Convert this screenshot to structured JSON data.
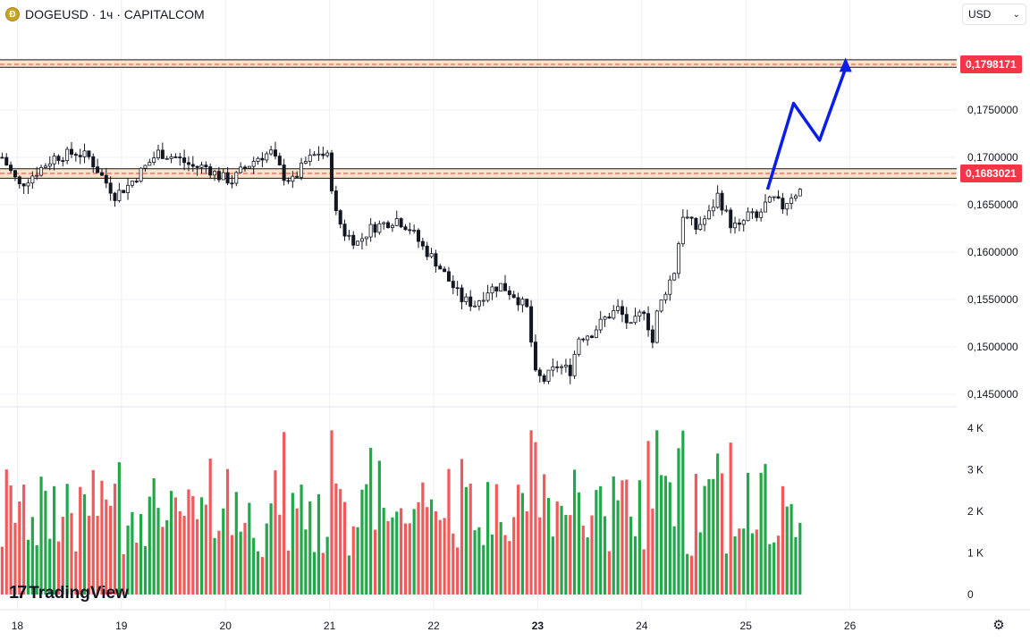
{
  "header": {
    "symbol": "DOGEUSD · 1ч · CAPITALCOM",
    "icon": "dogecoin-icon"
  },
  "currency_selector": {
    "value": "USD"
  },
  "branding": {
    "logo_text": "TradingView",
    "logo_mark": "17"
  },
  "price_tags": [
    {
      "label": "0,1798171",
      "value": 0.1798171,
      "color": "#f23645"
    },
    {
      "label": "0,1683021",
      "value": 0.1683021,
      "color": "#f23645"
    }
  ],
  "colors": {
    "up": "#089981",
    "down": "#131722",
    "vol_up": "#22a84a",
    "vol_down": "#f05a5a",
    "zone_border": "#131722",
    "zone_fill": "#fde3c8",
    "zone_dash": "#f23645",
    "arrow": "#0a1ee8",
    "grid": "#eef0f3"
  },
  "chart_data": {
    "type": "candlestick",
    "price_axis": {
      "ticks": [
        "0,1750000",
        "0,1700000",
        "0,1650000",
        "0,1600000",
        "0,1550000",
        "0,1500000",
        "0,1450000"
      ],
      "tick_values": [
        0.175,
        0.17,
        0.165,
        0.16,
        0.155,
        0.15,
        0.145
      ]
    },
    "volume_axis": {
      "ticks": [
        "4 K",
        "3 K",
        "2 K",
        "1 K",
        "0"
      ],
      "tick_values": [
        4000,
        3000,
        2000,
        1000,
        0
      ]
    },
    "x_axis": {
      "labels": [
        "18",
        "19",
        "20",
        "21",
        "22",
        "23",
        "24",
        "25",
        "26"
      ],
      "bold": "23"
    },
    "x_axis_hour_offsets": [
      4,
      28,
      52,
      76,
      100,
      124,
      148,
      172,
      196
    ],
    "zones": [
      {
        "top": 0.1803,
        "bottom": 0.1795,
        "mid": 0.1798171
      },
      {
        "top": 0.1688,
        "bottom": 0.1678,
        "mid": 0.1683021
      }
    ],
    "projection": [
      {
        "hour": 177,
        "price": 0.1666
      },
      {
        "hour": 183,
        "price": 0.1757
      },
      {
        "hour": 189,
        "price": 0.1718
      },
      {
        "hour": 195,
        "price": 0.1794
      }
    ],
    "close_path": [
      [
        0,
        0.17
      ],
      [
        4,
        0.167
      ],
      [
        8,
        0.1685
      ],
      [
        12,
        0.17
      ],
      [
        17,
        0.1705
      ],
      [
        20,
        0.17
      ],
      [
        23,
        0.168
      ],
      [
        26,
        0.166
      ],
      [
        29,
        0.167
      ],
      [
        33,
        0.169
      ],
      [
        36,
        0.1705
      ],
      [
        40,
        0.17
      ],
      [
        44,
        0.169
      ],
      [
        47,
        0.169
      ],
      [
        50,
        0.168
      ],
      [
        53,
        0.1675
      ],
      [
        55,
        0.1685
      ],
      [
        59,
        0.17
      ],
      [
        62,
        0.1705
      ],
      [
        65,
        0.168
      ],
      [
        67,
        0.1675
      ],
      [
        70,
        0.1695
      ],
      [
        73,
        0.1705
      ],
      [
        75,
        0.17
      ],
      [
        77,
        0.164
      ],
      [
        79,
        0.162
      ],
      [
        82,
        0.161
      ],
      [
        85,
        0.1625
      ],
      [
        88,
        0.163
      ],
      [
        91,
        0.1635
      ],
      [
        94,
        0.1625
      ],
      [
        97,
        0.1605
      ],
      [
        100,
        0.159
      ],
      [
        103,
        0.157
      ],
      [
        106,
        0.155
      ],
      [
        109,
        0.1545
      ],
      [
        112,
        0.156
      ],
      [
        115,
        0.1565
      ],
      [
        118,
        0.1555
      ],
      [
        121,
        0.154
      ],
      [
        123,
        0.147
      ],
      [
        125,
        0.1465
      ],
      [
        128,
        0.148
      ],
      [
        131,
        0.1475
      ],
      [
        133,
        0.151
      ],
      [
        136,
        0.1515
      ],
      [
        139,
        0.153
      ],
      [
        142,
        0.154
      ],
      [
        145,
        0.152
      ],
      [
        148,
        0.154
      ],
      [
        150,
        0.1505
      ],
      [
        151,
        0.1535
      ],
      [
        153,
        0.156
      ],
      [
        155,
        0.158
      ],
      [
        157,
        0.164
      ],
      [
        160,
        0.1625
      ],
      [
        163,
        0.164
      ],
      [
        165,
        0.166
      ],
      [
        168,
        0.163
      ],
      [
        170,
        0.1625
      ],
      [
        172,
        0.164
      ],
      [
        174,
        0.1635
      ],
      [
        176,
        0.165
      ],
      [
        178,
        0.1655
      ],
      [
        180,
        0.1648
      ],
      [
        182,
        0.166
      ],
      [
        184,
        0.1665
      ]
    ]
  }
}
